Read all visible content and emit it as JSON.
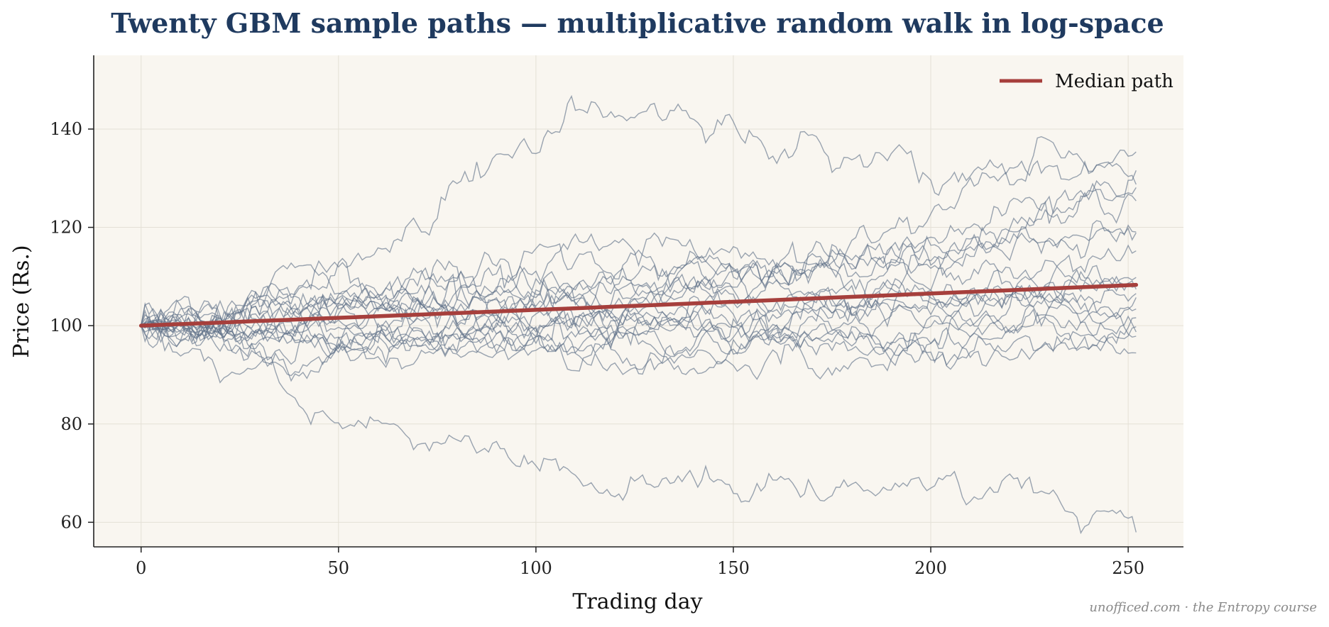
{
  "chart_data": {
    "type": "line",
    "title": "Twenty GBM sample paths — multiplicative random walk in log-space",
    "xlabel": "Trading day",
    "ylabel": "Price (Rs.)",
    "xlim": [
      -12,
      264
    ],
    "ylim": [
      55,
      155
    ],
    "x_ticks": [
      0,
      50,
      100,
      150,
      200,
      250
    ],
    "y_ticks": [
      60,
      80,
      100,
      120,
      140
    ],
    "grid": true,
    "legend_position": "top-right",
    "background_color": "#f9f6f0",
    "path_color": "#5d6f88",
    "median_color": "#a63f3c",
    "n_days": 252,
    "median_series": {
      "name": "Median path",
      "x": [
        0,
        252
      ],
      "values": [
        100,
        108.3
      ]
    },
    "sample_paths": [
      {
        "anchors": [
          [
            0,
            100
          ],
          [
            30,
            99
          ],
          [
            60,
            101
          ],
          [
            90,
            98
          ],
          [
            110,
            100
          ],
          [
            150,
            103
          ],
          [
            200,
            105
          ],
          [
            252,
            102
          ]
        ],
        "vol": 1.1
      },
      {
        "anchors": [
          [
            0,
            100
          ],
          [
            25,
            101
          ],
          [
            60,
            108
          ],
          [
            90,
            110
          ],
          [
            130,
            112
          ],
          [
            170,
            113
          ],
          [
            210,
            115
          ],
          [
            252,
            116
          ]
        ],
        "vol": 1.2
      },
      {
        "anchors": [
          [
            0,
            100
          ],
          [
            30,
            103
          ],
          [
            60,
            104
          ],
          [
            100,
            107
          ],
          [
            130,
            112
          ],
          [
            160,
            110
          ],
          [
            200,
            120
          ],
          [
            252,
            127
          ]
        ],
        "vol": 1.3
      },
      {
        "anchors": [
          [
            0,
            100
          ],
          [
            20,
            103
          ],
          [
            45,
            112
          ],
          [
            70,
            119
          ],
          [
            85,
            130
          ],
          [
            110,
            146
          ],
          [
            125,
            145
          ],
          [
            140,
            142
          ],
          [
            160,
            135
          ],
          [
            200,
            131
          ],
          [
            252,
            134
          ]
        ],
        "vol": 1.4
      },
      {
        "anchors": [
          [
            0,
            100
          ],
          [
            30,
            97
          ],
          [
            60,
            99
          ],
          [
            90,
            104
          ],
          [
            130,
            107
          ],
          [
            160,
            103
          ],
          [
            200,
            107
          ],
          [
            252,
            108
          ]
        ],
        "vol": 1.1
      },
      {
        "anchors": [
          [
            0,
            100
          ],
          [
            30,
            100
          ],
          [
            60,
            98
          ],
          [
            90,
            96
          ],
          [
            120,
            98
          ],
          [
            150,
            100
          ],
          [
            200,
            97
          ],
          [
            252,
            96
          ]
        ],
        "vol": 1.0
      },
      {
        "anchors": [
          [
            0,
            100
          ],
          [
            15,
            98
          ],
          [
            40,
            85
          ],
          [
            60,
            82
          ],
          [
            80,
            74
          ],
          [
            100,
            72
          ],
          [
            120,
            65
          ],
          [
            150,
            70
          ],
          [
            180,
            67
          ],
          [
            200,
            65
          ],
          [
            220,
            69
          ],
          [
            240,
            61
          ],
          [
            252,
            63
          ]
        ],
        "vol": 1.1
      },
      {
        "anchors": [
          [
            0,
            100
          ],
          [
            25,
            104
          ],
          [
            50,
            106
          ],
          [
            80,
            103
          ],
          [
            110,
            108
          ],
          [
            150,
            107
          ],
          [
            190,
            112
          ],
          [
            252,
            118
          ]
        ],
        "vol": 1.2
      },
      {
        "anchors": [
          [
            0,
            100
          ],
          [
            30,
            101
          ],
          [
            60,
            103
          ],
          [
            100,
            100
          ],
          [
            130,
            95
          ],
          [
            150,
            92
          ],
          [
            190,
            98
          ],
          [
            230,
            107
          ],
          [
            252,
            111
          ]
        ],
        "vol": 1.2
      },
      {
        "anchors": [
          [
            0,
            100
          ],
          [
            30,
            104
          ],
          [
            60,
            110
          ],
          [
            90,
            113
          ],
          [
            120,
            118
          ],
          [
            150,
            117
          ],
          [
            180,
            110
          ],
          [
            220,
            119
          ],
          [
            252,
            124
          ]
        ],
        "vol": 1.3
      },
      {
        "anchors": [
          [
            0,
            100
          ],
          [
            25,
            99
          ],
          [
            50,
            100
          ],
          [
            80,
            99
          ],
          [
            110,
            101
          ],
          [
            140,
            100
          ],
          [
            170,
            99
          ],
          [
            200,
            96
          ],
          [
            252,
            95
          ]
        ],
        "vol": 1.0
      },
      {
        "anchors": [
          [
            0,
            100
          ],
          [
            20,
            97
          ],
          [
            40,
            92
          ],
          [
            70,
            95
          ],
          [
            100,
            101
          ],
          [
            130,
            97
          ],
          [
            160,
            97
          ],
          [
            200,
            103
          ],
          [
            252,
            103
          ]
        ],
        "vol": 1.1
      },
      {
        "anchors": [
          [
            0,
            100
          ],
          [
            25,
            100
          ],
          [
            50,
            103
          ],
          [
            80,
            104
          ],
          [
            110,
            105
          ],
          [
            140,
            109
          ],
          [
            170,
            105
          ],
          [
            200,
            101
          ],
          [
            252,
            101
          ]
        ],
        "vol": 1.1
      },
      {
        "anchors": [
          [
            0,
            100
          ],
          [
            25,
            102
          ],
          [
            60,
            104
          ],
          [
            90,
            100
          ],
          [
            120,
            101
          ],
          [
            150,
            107
          ],
          [
            180,
            113
          ],
          [
            210,
            118
          ],
          [
            240,
            127
          ],
          [
            252,
            128
          ]
        ],
        "vol": 1.3
      },
      {
        "anchors": [
          [
            0,
            100
          ],
          [
            20,
            97
          ],
          [
            45,
            93
          ],
          [
            70,
            98
          ],
          [
            100,
            96
          ],
          [
            130,
            92
          ],
          [
            150,
            97
          ],
          [
            190,
            96
          ],
          [
            230,
            103
          ],
          [
            252,
            106
          ]
        ],
        "vol": 1.1
      },
      {
        "anchors": [
          [
            0,
            100
          ],
          [
            20,
            102
          ],
          [
            50,
            109
          ],
          [
            80,
            112
          ],
          [
            110,
            107
          ],
          [
            140,
            104
          ],
          [
            170,
            115
          ],
          [
            200,
            122
          ],
          [
            230,
            134
          ],
          [
            252,
            133
          ]
        ],
        "vol": 1.3
      },
      {
        "anchors": [
          [
            0,
            100
          ],
          [
            30,
            98
          ],
          [
            60,
            95
          ],
          [
            90,
            94
          ],
          [
            110,
            98
          ],
          [
            130,
            103
          ],
          [
            150,
            100
          ],
          [
            180,
            93
          ],
          [
            220,
            95
          ],
          [
            252,
            99
          ]
        ],
        "vol": 1.1
      },
      {
        "anchors": [
          [
            0,
            100
          ],
          [
            25,
            99
          ],
          [
            55,
            104
          ],
          [
            85,
            107
          ],
          [
            120,
            104
          ],
          [
            150,
            97
          ],
          [
            180,
            103
          ],
          [
            210,
            107
          ],
          [
            252,
            110
          ]
        ],
        "vol": 1.1
      },
      {
        "anchors": [
          [
            0,
            100
          ],
          [
            20,
            100
          ],
          [
            50,
            98
          ],
          [
            80,
            95
          ],
          [
            110,
            94
          ],
          [
            140,
            96
          ],
          [
            170,
            101
          ],
          [
            200,
            108
          ],
          [
            230,
            113
          ],
          [
            252,
            116
          ]
        ],
        "vol": 1.2
      },
      {
        "anchors": [
          [
            0,
            100
          ],
          [
            25,
            101
          ],
          [
            50,
            100
          ],
          [
            80,
            102
          ],
          [
            110,
            105
          ],
          [
            140,
            107
          ],
          [
            170,
            104
          ],
          [
            200,
            106
          ],
          [
            230,
            105
          ],
          [
            252,
            102
          ]
        ],
        "vol": 1.1
      }
    ]
  },
  "credit": "unofficed.com  ·  the Entropy course"
}
